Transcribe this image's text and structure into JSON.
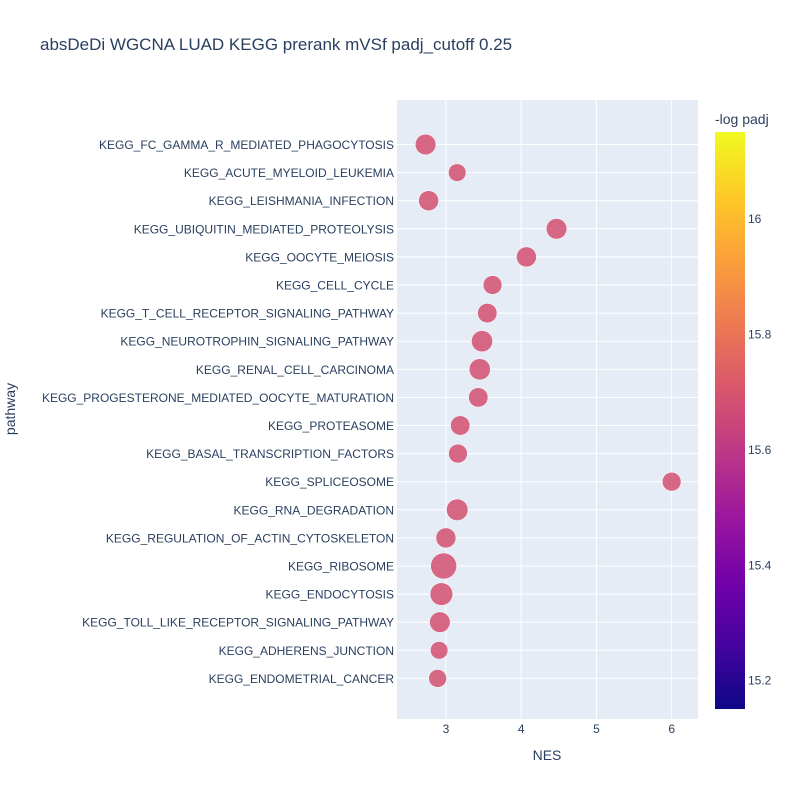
{
  "chart_data": {
    "type": "scatter",
    "title": "absDeDi WGCNA LUAD KEGG prerank mVSf padj_cutoff 0.25",
    "xlabel": "NES",
    "ylabel": "pathway",
    "xlim": [
      2.35,
      6.35
    ],
    "x_ticks": [
      "3",
      "4",
      "5",
      "6"
    ],
    "grid": true,
    "colorbar": {
      "title": "-log padj",
      "range": [
        15.15,
        16.15
      ],
      "ticks": [
        "15.2",
        "15.4",
        "15.6",
        "15.8",
        "16"
      ],
      "colorscale": [
        "#0d0887",
        "#46039f",
        "#7201a8",
        "#9c179e",
        "#bd3786",
        "#d8576b",
        "#ed7953",
        "#fb9f3a",
        "#fdca26",
        "#f0f921"
      ]
    },
    "point_color_value": 15.68,
    "categories": [
      "KEGG_FC_GAMMA_R_MEDIATED_PHAGOCYTOSIS",
      "KEGG_ACUTE_MYELOID_LEUKEMIA",
      "KEGG_LEISHMANIA_INFECTION",
      "KEGG_UBIQUITIN_MEDIATED_PROTEOLYSIS",
      "KEGG_OOCYTE_MEIOSIS",
      "KEGG_CELL_CYCLE",
      "KEGG_T_CELL_RECEPTOR_SIGNALING_PATHWAY",
      "KEGG_NEUROTROPHIN_SIGNALING_PATHWAY",
      "KEGG_RENAL_CELL_CARCINOMA",
      "KEGG_PROGESTERONE_MEDIATED_OOCYTE_MATURATION",
      "KEGG_PROTEASOME",
      "KEGG_BASAL_TRANSCRIPTION_FACTORS",
      "KEGG_SPLICEOSOME",
      "KEGG_RNA_DEGRADATION",
      "KEGG_REGULATION_OF_ACTIN_CYTOSKELETON",
      "KEGG_RIBOSOME",
      "KEGG_ENDOCYTOSIS",
      "KEGG_TOLL_LIKE_RECEPTOR_SIGNALING_PATHWAY",
      "KEGG_ADHERENS_JUNCTION",
      "KEGG_ENDOMETRIAL_CANCER"
    ],
    "x": [
      2.73,
      3.15,
      2.77,
      4.47,
      4.07,
      3.62,
      3.55,
      3.48,
      3.45,
      3.43,
      3.19,
      3.16,
      6.0,
      3.15,
      3.0,
      2.97,
      2.94,
      2.92,
      2.91,
      2.89
    ],
    "size": [
      0.55,
      0.3,
      0.5,
      0.55,
      0.5,
      0.4,
      0.45,
      0.6,
      0.6,
      0.45,
      0.45,
      0.4,
      0.4,
      0.63,
      0.5,
      1.0,
      0.72,
      0.55,
      0.3,
      0.32
    ]
  }
}
